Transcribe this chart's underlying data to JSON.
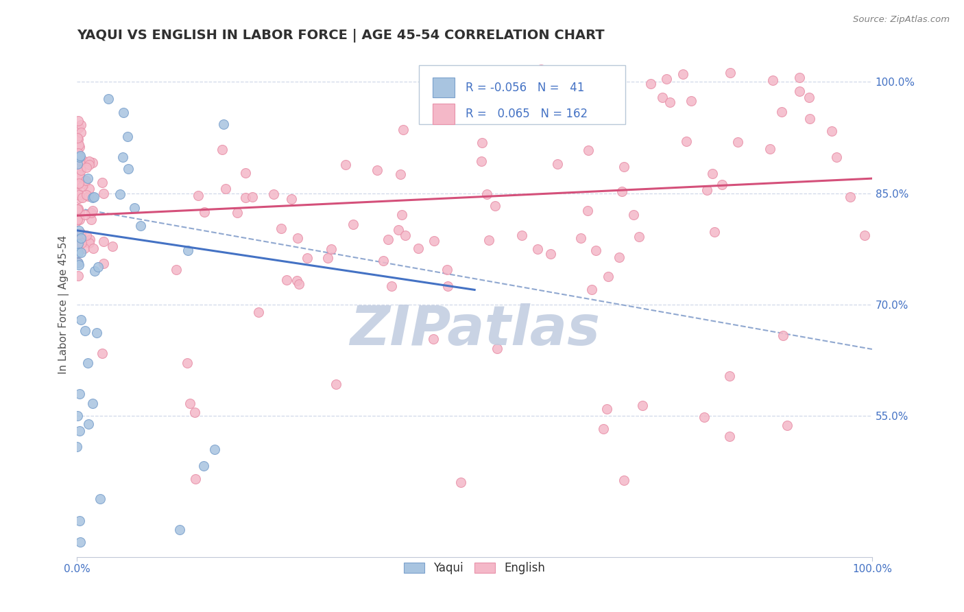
{
  "title": "YAQUI VS ENGLISH IN LABOR FORCE | AGE 45-54 CORRELATION CHART",
  "source_text": "Source: ZipAtlas.com",
  "ylabel": "In Labor Force | Age 45-54",
  "xlim": [
    0.0,
    1.0
  ],
  "ylim": [
    0.36,
    1.04
  ],
  "right_yticks": [
    0.55,
    0.7,
    0.85,
    1.0
  ],
  "right_yticklabels": [
    "55.0%",
    "70.0%",
    "85.0%",
    "100.0%"
  ],
  "legend_R_yaqui": "-0.056",
  "legend_N_yaqui": "41",
  "legend_R_english": "0.065",
  "legend_N_english": "162",
  "yaqui_color": "#a8c4e0",
  "english_color": "#f4b8c8",
  "yaqui_edge_color": "#7aa0cc",
  "english_edge_color": "#e890a8",
  "yaqui_line_color": "#4472c4",
  "english_line_color": "#d4507a",
  "dashed_line_color": "#90a8d0",
  "watermark": "ZIPatlas",
  "watermark_color": "#c0cce0",
  "title_color": "#303030",
  "label_color": "#4472c4",
  "grid_color": "#d0d8e8",
  "yaqui_trend_x": [
    0.0,
    0.5
  ],
  "yaqui_trend_y": [
    0.8,
    0.72
  ],
  "english_trend_x": [
    0.0,
    1.0
  ],
  "english_trend_y": [
    0.82,
    0.87
  ],
  "dashed_trend_x": [
    0.0,
    1.0
  ],
  "dashed_trend_y": [
    0.83,
    0.64
  ]
}
